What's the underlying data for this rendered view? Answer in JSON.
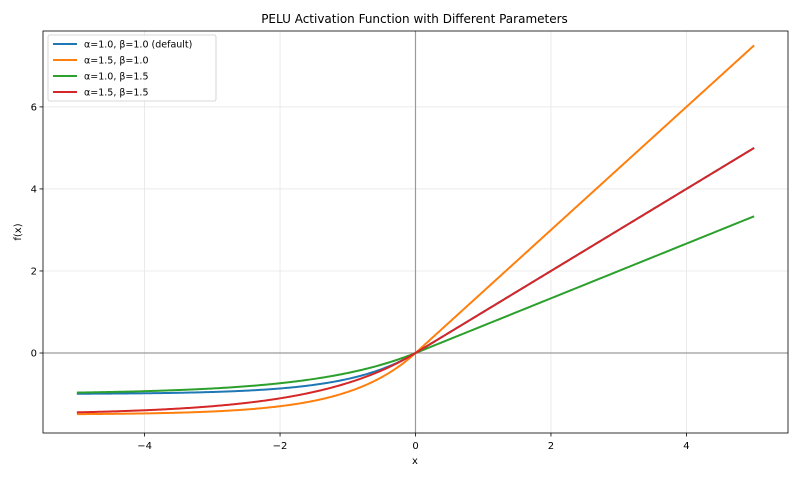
{
  "chart_data": {
    "type": "line",
    "title": "PELU Activation Function with Different Parameters",
    "xlabel": "x",
    "ylabel": "f(x)",
    "xlim": [
      -5.5,
      5.5
    ],
    "ylim": [
      -1.95,
      7.85
    ],
    "x_ticks": [
      -4,
      -2,
      0,
      2,
      4
    ],
    "y_ticks": [
      0,
      2,
      4,
      6
    ],
    "x_tick_labels": [
      "−4",
      "−2",
      "0",
      "2",
      "4"
    ],
    "y_tick_labels": [
      "0",
      "2",
      "4",
      "6"
    ],
    "grid": true,
    "legend_position": "top-left",
    "x_range": [
      -5,
      5
    ],
    "series": [
      {
        "name": "α=1.0, β=1.0 (default)",
        "alpha": 1.0,
        "beta": 1.0,
        "color": "#1f77b4"
      },
      {
        "name": "α=1.5, β=1.0",
        "alpha": 1.5,
        "beta": 1.0,
        "color": "#ff7f0e"
      },
      {
        "name": "α=1.0, β=1.5",
        "alpha": 1.0,
        "beta": 1.5,
        "color": "#2ca02c"
      },
      {
        "name": "α=1.5, β=1.5",
        "alpha": 1.5,
        "beta": 1.5,
        "color": "#d62728"
      }
    ]
  }
}
